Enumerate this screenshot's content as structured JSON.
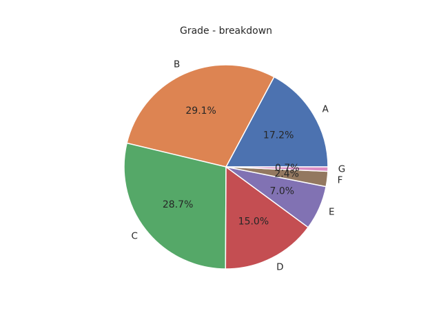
{
  "chart_data": {
    "type": "pie",
    "title": "Grade - breakdown",
    "categories": [
      "A",
      "B",
      "C",
      "D",
      "E",
      "F",
      "G"
    ],
    "values": [
      17.2,
      29.1,
      28.7,
      15.0,
      7.0,
      2.4,
      0.7
    ],
    "value_labels": [
      "17.2%",
      "29.1%",
      "28.7%",
      "15.0%",
      "7.0%",
      "2.4%",
      "0.7%"
    ],
    "colors": [
      "#4c72b0",
      "#dd8452",
      "#55a868",
      "#c44e52",
      "#8172b3",
      "#937860",
      "#da8bc3"
    ],
    "start_angle_deg": 0,
    "direction": "counterclockwise",
    "legend": "none"
  }
}
